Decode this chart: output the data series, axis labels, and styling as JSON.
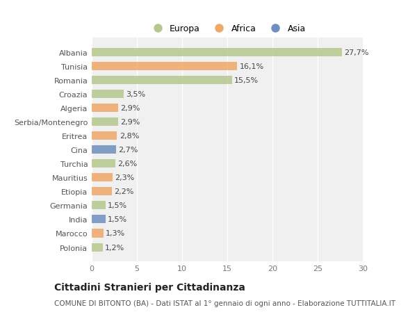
{
  "categories": [
    "Albania",
    "Tunisia",
    "Romania",
    "Croazia",
    "Algeria",
    "Serbia/Montenegro",
    "Eritrea",
    "Cina",
    "Turchia",
    "Mauritius",
    "Etiopia",
    "Germania",
    "India",
    "Marocco",
    "Polonia"
  ],
  "values": [
    27.7,
    16.1,
    15.5,
    3.5,
    2.9,
    2.9,
    2.8,
    2.7,
    2.6,
    2.3,
    2.2,
    1.5,
    1.5,
    1.3,
    1.2
  ],
  "labels": [
    "27,7%",
    "16,1%",
    "15,5%",
    "3,5%",
    "2,9%",
    "2,9%",
    "2,8%",
    "2,7%",
    "2,6%",
    "2,3%",
    "2,2%",
    "1,5%",
    "1,5%",
    "1,3%",
    "1,2%"
  ],
  "colors": [
    "#b5c98e",
    "#f0a868",
    "#b5c98e",
    "#b5c98e",
    "#f0a868",
    "#b5c98e",
    "#f0a868",
    "#6e8fbf",
    "#b5c98e",
    "#f0a868",
    "#f0a868",
    "#b5c98e",
    "#6e8fbf",
    "#f0a868",
    "#b5c98e"
  ],
  "legend_labels": [
    "Europa",
    "Africa",
    "Asia"
  ],
  "legend_colors": [
    "#b5c98e",
    "#f0a868",
    "#6e8fbf"
  ],
  "xlim": [
    0,
    30
  ],
  "xticks": [
    0,
    5,
    10,
    15,
    20,
    25,
    30
  ],
  "title": "Cittadini Stranieri per Cittadinanza",
  "subtitle": "COMUNE DI BITONTO (BA) - Dati ISTAT al 1° gennaio di ogni anno - Elaborazione TUTTITALIA.IT",
  "bg_color": "#ffffff",
  "plot_bg_color": "#f0f0f0",
  "grid_color": "#ffffff",
  "bar_height": 0.6,
  "label_fontsize": 8,
  "tick_fontsize": 8,
  "title_fontsize": 10,
  "subtitle_fontsize": 7.5
}
